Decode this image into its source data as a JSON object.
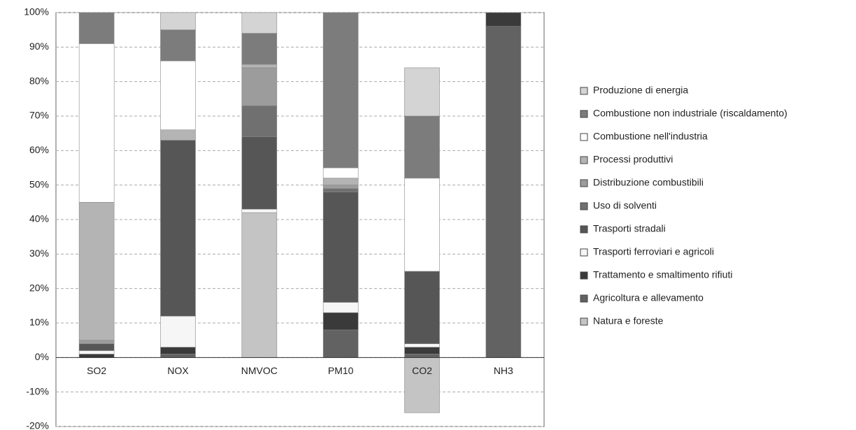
{
  "chart_data": {
    "type": "stacked-bar",
    "categories": [
      "SO2",
      "NOX",
      "NMVOC",
      "PM10",
      "CO2",
      "NH3"
    ],
    "series": [
      {
        "name": "Produzione di energia",
        "color": "#d4d4d4",
        "values": [
          0,
          5,
          6,
          0,
          14,
          0
        ]
      },
      {
        "name": "Combustione non industriale (riscaldamento)",
        "color": "#7c7c7c",
        "values": [
          9,
          9,
          9,
          45,
          18,
          0
        ]
      },
      {
        "name": "Combustione nell'industria",
        "color": "#ffffff",
        "values": [
          46,
          20,
          0,
          3,
          27,
          0
        ]
      },
      {
        "name": "Processi produttivi",
        "color": "#b4b4b4",
        "values": [
          40,
          3,
          1,
          2,
          0,
          0
        ]
      },
      {
        "name": "Distribuzione combustibili",
        "color": "#9c9c9c",
        "values": [
          1,
          0,
          11,
          1,
          0,
          0
        ]
      },
      {
        "name": "Uso di solventi",
        "color": "#707070",
        "values": [
          0,
          0,
          9,
          1,
          0,
          0
        ]
      },
      {
        "name": "Trasporti stradali",
        "color": "#565656",
        "values": [
          2,
          51,
          21,
          32,
          21,
          0
        ]
      },
      {
        "name": "Trasporti ferroviari e agricoli",
        "color": "#f6f6f6",
        "values": [
          1,
          9,
          1,
          3,
          1,
          0
        ]
      },
      {
        "name": "Trattamento e smaltimento rifiuti",
        "color": "#3a3a3a",
        "values": [
          1,
          2,
          0,
          5,
          2,
          4
        ]
      },
      {
        "name": "Agricoltura e allevamento",
        "color": "#626262",
        "values": [
          0,
          1,
          0,
          8,
          1,
          96
        ]
      },
      {
        "name": "Natura e foreste",
        "color": "#c4c4c4",
        "values": [
          0,
          0,
          42,
          0,
          -16,
          0
        ]
      }
    ],
    "ylim": [
      -20,
      100
    ],
    "yticks": [
      {
        "value": -20,
        "label": "-20%"
      },
      {
        "value": -10,
        "label": "-10%"
      },
      {
        "value": 0,
        "label": "0%"
      },
      {
        "value": 10,
        "label": "10%"
      },
      {
        "value": 20,
        "label": "20%"
      },
      {
        "value": 30,
        "label": "30%"
      },
      {
        "value": 40,
        "label": "40%"
      },
      {
        "value": 50,
        "label": "50%"
      },
      {
        "value": 60,
        "label": "60%"
      },
      {
        "value": 70,
        "label": "70%"
      },
      {
        "value": 80,
        "label": "80%"
      },
      {
        "value": 90,
        "label": "90%"
      },
      {
        "value": 100,
        "label": "100%"
      }
    ],
    "grid": true
  }
}
